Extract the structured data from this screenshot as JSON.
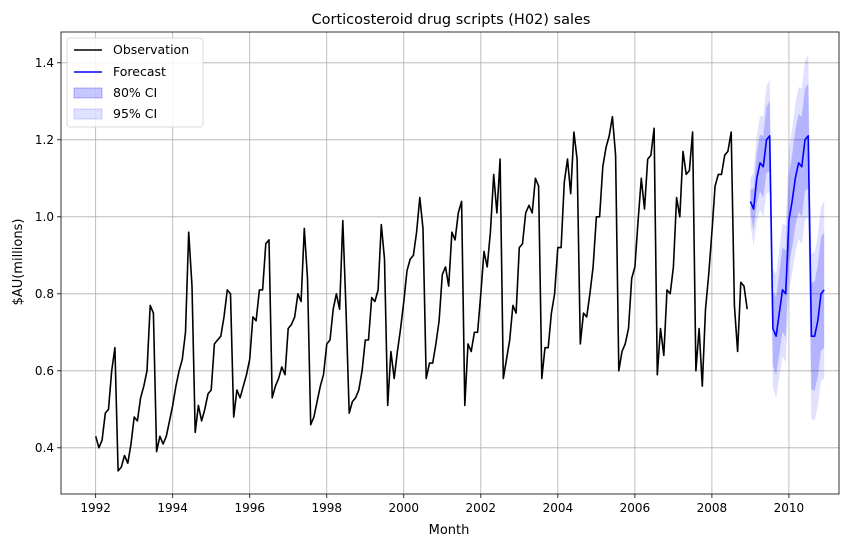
{
  "chart_data": {
    "type": "line",
    "title": "Corticosteroid drug scripts (H02) sales",
    "xlabel": "Month",
    "ylabel": "$AU(millions)",
    "xlim": [
      1991.1,
      2011.3
    ],
    "ylim": [
      0.28,
      1.48
    ],
    "x_ticks": [
      1992,
      1994,
      1996,
      1998,
      2000,
      2002,
      2004,
      2006,
      2008,
      2010
    ],
    "x_tick_labels": [
      "1992",
      "1994",
      "1996",
      "1998",
      "2000",
      "2002",
      "2004",
      "2006",
      "2008",
      "2010"
    ],
    "y_ticks": [
      0.4,
      0.6,
      0.8,
      1.0,
      1.2,
      1.4
    ],
    "y_tick_labels": [
      "0.4",
      "0.6",
      "0.8",
      "1.0",
      "1.2",
      "1.4"
    ],
    "grid": true,
    "legend_position": "top-left",
    "legend": [
      "Observation",
      "Forecast",
      "80% CI",
      "95% CI"
    ],
    "observation": {
      "name": "Observation",
      "color": "#000000",
      "start": 1992.0,
      "step_months": 1,
      "values": [
        0.43,
        0.4,
        0.42,
        0.49,
        0.5,
        0.6,
        0.66,
        0.34,
        0.35,
        0.38,
        0.36,
        0.41,
        0.48,
        0.47,
        0.53,
        0.56,
        0.6,
        0.77,
        0.75,
        0.39,
        0.43,
        0.41,
        0.43,
        0.47,
        0.51,
        0.56,
        0.6,
        0.63,
        0.7,
        0.96,
        0.82,
        0.44,
        0.51,
        0.47,
        0.5,
        0.54,
        0.55,
        0.67,
        0.68,
        0.69,
        0.74,
        0.81,
        0.8,
        0.48,
        0.55,
        0.53,
        0.56,
        0.59,
        0.63,
        0.74,
        0.73,
        0.81,
        0.81,
        0.93,
        0.94,
        0.53,
        0.56,
        0.58,
        0.61,
        0.59,
        0.71,
        0.72,
        0.74,
        0.8,
        0.78,
        0.97,
        0.84,
        0.46,
        0.48,
        0.52,
        0.56,
        0.59,
        0.67,
        0.68,
        0.76,
        0.8,
        0.76,
        0.99,
        0.76,
        0.49,
        0.52,
        0.53,
        0.55,
        0.6,
        0.68,
        0.68,
        0.79,
        0.78,
        0.81,
        0.98,
        0.89,
        0.51,
        0.65,
        0.58,
        0.65,
        0.71,
        0.78,
        0.86,
        0.89,
        0.9,
        0.96,
        1.05,
        0.97,
        0.58,
        0.62,
        0.62,
        0.67,
        0.73,
        0.85,
        0.87,
        0.82,
        0.96,
        0.94,
        1.01,
        1.04,
        0.51,
        0.67,
        0.65,
        0.7,
        0.7,
        0.8,
        0.91,
        0.87,
        0.96,
        1.11,
        1.01,
        1.15,
        0.58,
        0.63,
        0.68,
        0.77,
        0.75,
        0.92,
        0.93,
        1.01,
        1.03,
        1.01,
        1.1,
        1.08,
        0.58,
        0.66,
        0.66,
        0.75,
        0.8,
        0.92,
        0.92,
        1.09,
        1.15,
        1.06,
        1.22,
        1.15,
        0.67,
        0.75,
        0.74,
        0.8,
        0.87,
        1.0,
        1.0,
        1.13,
        1.18,
        1.21,
        1.26,
        1.16,
        0.6,
        0.65,
        0.67,
        0.71,
        0.84,
        0.87,
        0.99,
        1.1,
        1.02,
        1.15,
        1.16,
        1.23,
        0.59,
        0.71,
        0.64,
        0.81,
        0.8,
        0.87,
        1.05,
        1.0,
        1.17,
        1.11,
        1.12,
        1.22,
        0.6,
        0.71,
        0.56,
        0.76,
        0.85,
        0.96,
        1.08,
        1.11,
        1.11,
        1.16,
        1.17,
        1.22,
        0.77,
        0.65,
        0.83,
        0.82,
        0.76
      ]
    },
    "forecast": {
      "name": "Forecast",
      "color": "#0000ff",
      "start": 2009.0,
      "step_months": 1,
      "values": [
        1.04,
        1.02,
        1.1,
        1.14,
        1.13,
        1.2,
        1.21,
        0.71,
        0.69,
        0.75,
        0.81,
        0.8,
        0.99,
        1.04,
        1.1,
        1.14,
        1.13,
        1.2,
        1.21,
        0.69,
        0.69,
        0.73,
        0.8,
        0.81
      ]
    },
    "ci80": {
      "name": "80% CI",
      "color": "#0000ff",
      "half_width_start": 0.03,
      "half_width_end": 0.15
    },
    "ci95": {
      "name": "95% CI",
      "color": "#0000ff",
      "half_width_start": 0.06,
      "half_width_end": 0.23
    }
  }
}
